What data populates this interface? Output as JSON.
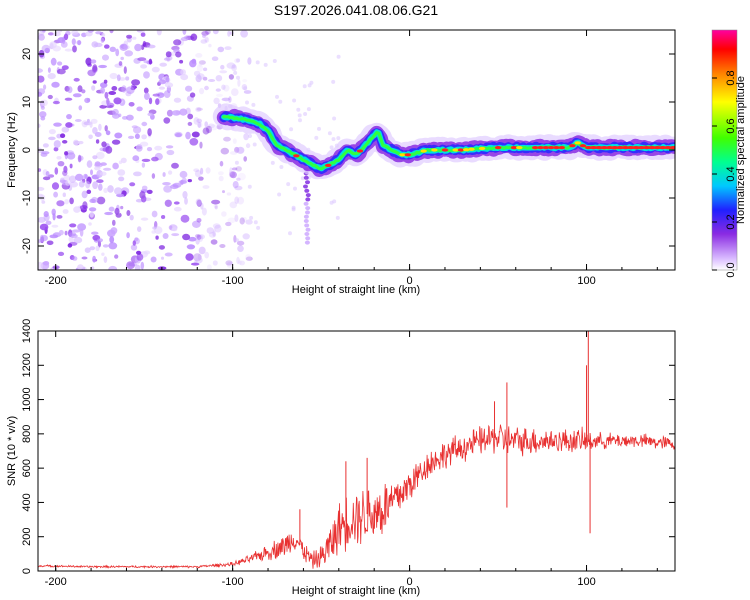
{
  "title": "S197.2026.041.08.06.G21",
  "colors": {
    "snr_line": "#e83030",
    "ridge_core": "#ff2020",
    "background": "#ffffff"
  },
  "chart_data": [
    {
      "type": "heatmap",
      "name": "spectrogram",
      "xlabel": "Height of straight line (km)",
      "ylabel": "Frequency (Hz)",
      "xlim": [
        -210,
        150
      ],
      "ylim": [
        -25,
        25
      ],
      "xticks": [
        -200,
        -100,
        0,
        100
      ],
      "yticks": [
        -20,
        -10,
        0,
        10,
        20
      ],
      "ridge": {
        "x": [
          -105,
          -95,
          -85,
          -80,
          -75,
          -70,
          -65,
          -60,
          -55,
          -50,
          -45,
          -40,
          -35,
          -30,
          -25,
          -20,
          -18,
          -15,
          -10,
          -5,
          0,
          10,
          20,
          30,
          40,
          50,
          60,
          70,
          80,
          90,
          95,
          100,
          110,
          120,
          130,
          140,
          150
        ],
        "y": [
          7,
          6.5,
          5.5,
          4,
          1,
          0,
          -1,
          -2,
          -3,
          -4,
          -3,
          -2,
          0,
          -1,
          1,
          3,
          4,
          1,
          0,
          -1,
          -1,
          0,
          0,
          0,
          0.3,
          0.5,
          0.5,
          0.5,
          0.5,
          0.5,
          1.5,
          0.5,
          0.5,
          0.5,
          0.5,
          0.5,
          0.5
        ]
      },
      "noise_region_x": [
        -210,
        -100
      ],
      "colorbar": {
        "label": "Normalized spectral amplitude",
        "ticks": [
          0.0,
          0.2,
          0.4,
          0.6,
          0.8
        ],
        "tick_labels": [
          "0.0",
          "0.2",
          "0.4",
          "0.6",
          "0.8"
        ]
      }
    },
    {
      "type": "line",
      "name": "snr",
      "xlabel": "Height of straight line (km)",
      "ylabel": "SNR (10 * v/v)",
      "xlim": [
        -210,
        150
      ],
      "ylim": [
        0,
        1400
      ],
      "xticks": [
        -200,
        -100,
        0,
        100
      ],
      "yticks": [
        0,
        200,
        400,
        600,
        800,
        1000,
        1200,
        1400
      ],
      "envelope": {
        "x": [
          -210,
          -180,
          -150,
          -120,
          -100,
          -90,
          -80,
          -70,
          -65,
          -60,
          -55,
          -50,
          -45,
          -40,
          -35,
          -30,
          -25,
          -20,
          -15,
          -10,
          -5,
          0,
          5,
          10,
          20,
          30,
          40,
          50,
          55,
          60,
          70,
          80,
          90,
          97,
          100,
          102,
          105,
          110,
          120,
          130,
          140,
          150
        ],
        "y": [
          30,
          25,
          25,
          25,
          40,
          70,
          110,
          150,
          200,
          120,
          60,
          80,
          150,
          250,
          300,
          320,
          330,
          340,
          360,
          400,
          450,
          500,
          560,
          620,
          680,
          720,
          760,
          780,
          760,
          760,
          760,
          760,
          760,
          760,
          750,
          760,
          760,
          760,
          760,
          760,
          750,
          740
        ],
        "noise": [
          5,
          5,
          5,
          5,
          10,
          20,
          40,
          60,
          60,
          50,
          40,
          60,
          100,
          120,
          140,
          140,
          150,
          150,
          150,
          120,
          100,
          90,
          80,
          70,
          70,
          70,
          70,
          80,
          80,
          70,
          70,
          60,
          60,
          60,
          60,
          50,
          40,
          40,
          35,
          35,
          35,
          35
        ]
      },
      "spikes": [
        {
          "x": -62,
          "y": 360
        },
        {
          "x": -36,
          "y": 640
        },
        {
          "x": -24,
          "y": 660
        },
        {
          "x": 48,
          "y": 990
        },
        {
          "x": 55,
          "y": 1100
        },
        {
          "x": 55,
          "y": 370
        },
        {
          "x": 101,
          "y": 1420
        },
        {
          "x": 102,
          "y": 220
        },
        {
          "x": 100,
          "y": 1200
        }
      ]
    }
  ]
}
